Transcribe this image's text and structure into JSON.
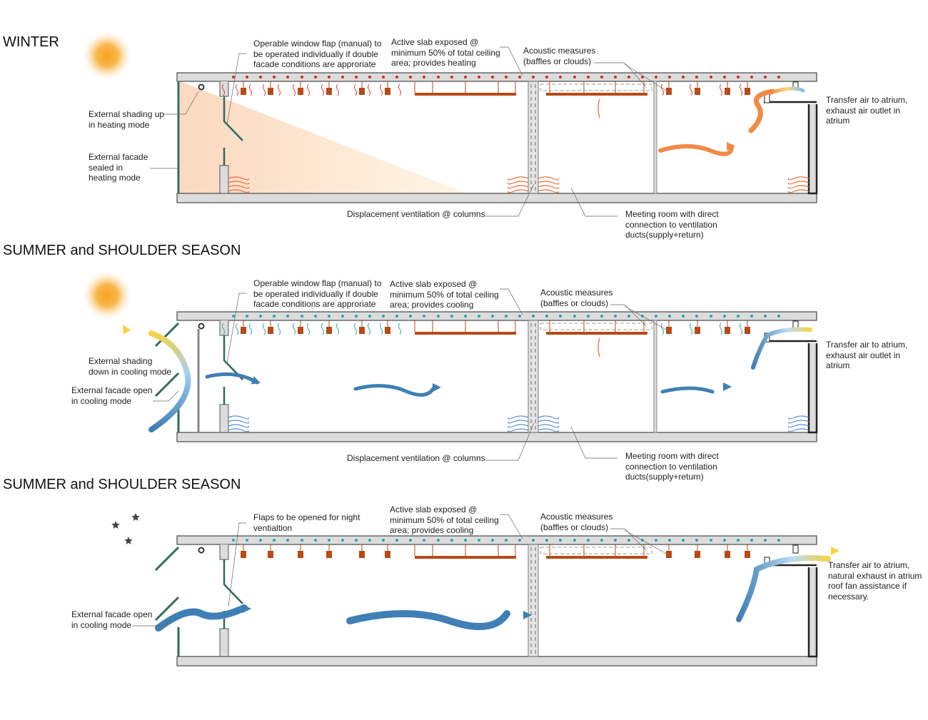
{
  "sections": [
    {
      "title": "WINTER",
      "mode": "heating",
      "labels": {
        "window_flap": [
          "Operable window flap (manual) to",
          "be operated individually if double",
          "facade conditions are approriate"
        ],
        "active_slab": [
          "Active slab exposed @",
          "minimum 50% of total ceiling",
          "area; provides heating"
        ],
        "acoustic": [
          "Acoustic measures",
          "(baffles or clouds)"
        ],
        "shading": [
          "External shading up",
          "in heating mode"
        ],
        "facade": [
          "External facade",
          "sealed in",
          "heating mode"
        ],
        "displacement": [
          "Displacement ventilation @ columns"
        ],
        "meeting_room": [
          "Meeting room with direct",
          "connection to ventilation",
          "ducts(supply+return)"
        ],
        "transfer": [
          "Transfer air to atrium,",
          "exhaust air outlet in",
          "atrium"
        ]
      },
      "colors": {
        "slab_dots": "#d62b2b",
        "air": "#f08a44"
      }
    },
    {
      "title": "SUMMER and SHOULDER SEASON",
      "mode": "cooling-day",
      "labels": {
        "window_flap": [
          "Operable window flap (manual) to",
          "be operated individually if double",
          "facade conditions are approriate"
        ],
        "active_slab": [
          "Active slab exposed @",
          "minimum 50% of total ceiling",
          "area; provides  cooling"
        ],
        "acoustic": [
          "Acoustic measures",
          "(baffles or clouds)"
        ],
        "shading": [
          "External shading",
          "down in cooling mode"
        ],
        "facade": [
          "External facade open",
          "in cooling mode"
        ],
        "displacement": [
          "Displacement ventilation @ columns"
        ],
        "meeting_room": [
          "Meeting room with direct",
          "connection to ventilation",
          "ducts(supply+return)"
        ],
        "transfer": [
          "Transfer air to atrium,",
          "exhaust air outlet in",
          "atrium"
        ]
      },
      "colors": {
        "slab_dots": "#2aa7a3",
        "air": "#3f7fb5"
      }
    },
    {
      "title": "SUMMER and SHOULDER SEASON",
      "mode": "cooling-night",
      "labels": {
        "window_flap": [
          "Flaps to be opened for night",
          "ventialtion"
        ],
        "active_slab": [
          "Active slab exposed @",
          "minimum 50% of total ceiling",
          "area; provides  cooling"
        ],
        "acoustic": [
          "Acoustic measures",
          "(baffles or clouds)"
        ],
        "facade": [
          "External facade open",
          "in cooling mode"
        ],
        "transfer": [
          "Transfer air to atrium,",
          "natural exhaust in atrium",
          "roof fan assistance if",
          "necessary."
        ]
      },
      "colors": {
        "slab_dots": "#2aa7a3",
        "air": "#3f7fb5"
      }
    }
  ],
  "icons": [
    "sun-icon",
    "sun-icon",
    "moon-and-stars-icon"
  ],
  "colors": {
    "slab": "#dcdcdc",
    "facade": "#2e6b5a",
    "radiant_panel": "#b84a17",
    "sun": "#f7a21b"
  }
}
